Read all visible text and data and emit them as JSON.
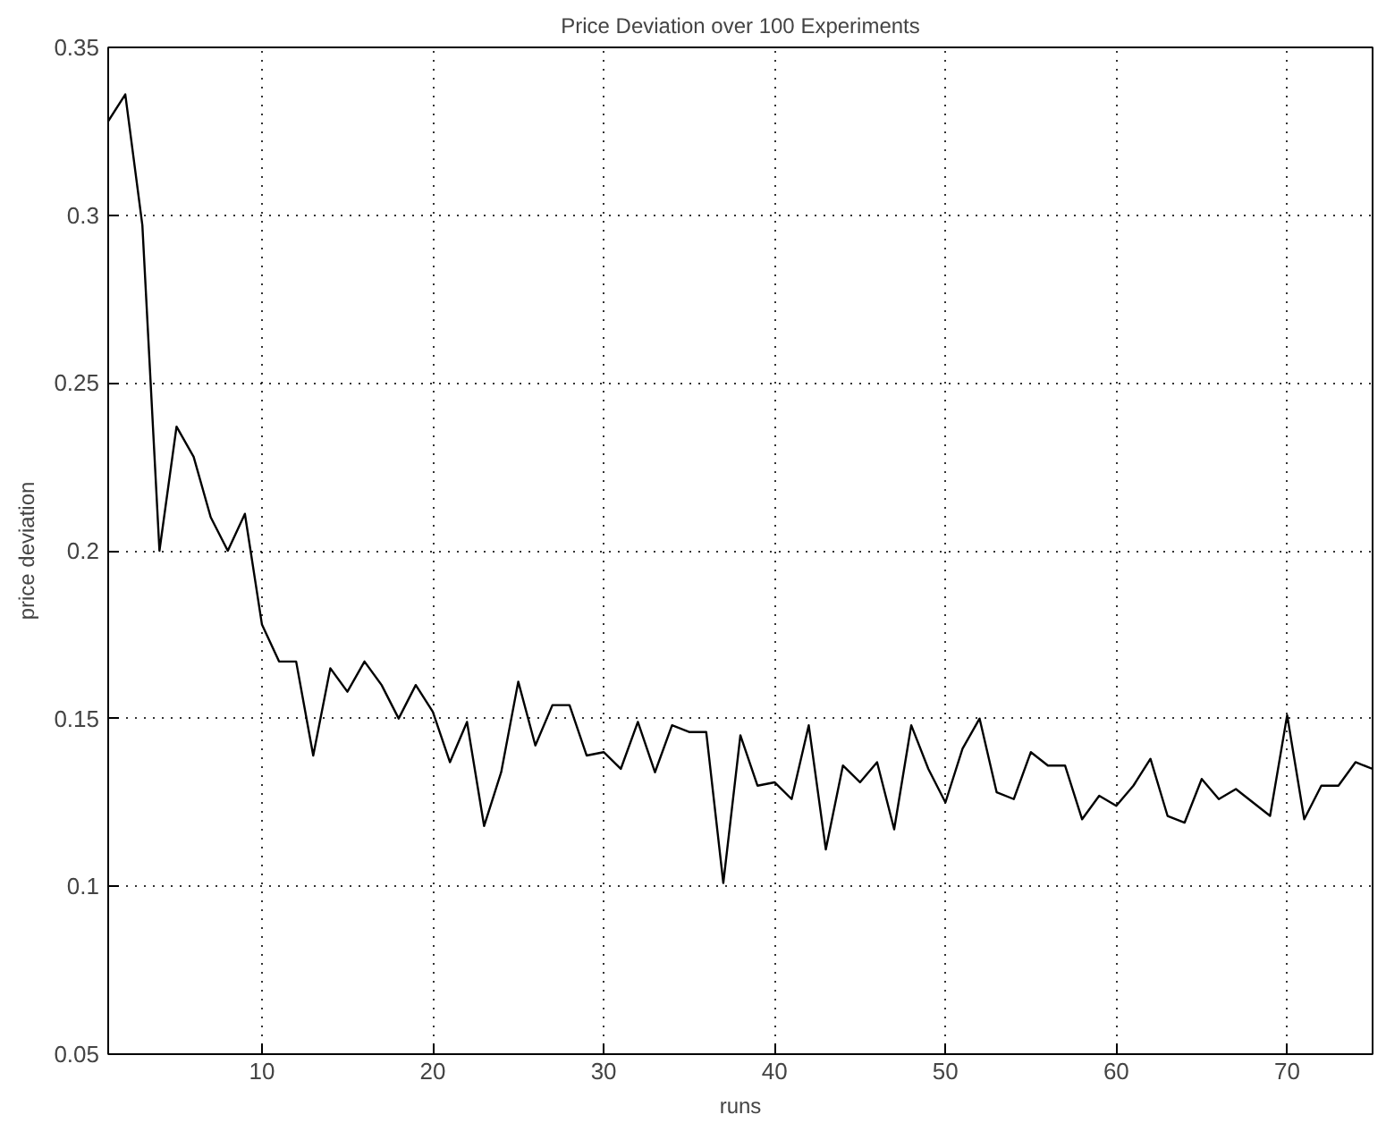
{
  "chart_data": {
    "type": "line",
    "title": "Price Deviation over 100 Experiments",
    "xlabel": "runs",
    "ylabel": "price deviation",
    "x": [
      1,
      2,
      3,
      4,
      5,
      6,
      7,
      8,
      9,
      10,
      11,
      12,
      13,
      14,
      15,
      16,
      17,
      18,
      19,
      20,
      21,
      22,
      23,
      24,
      25,
      26,
      27,
      28,
      29,
      30,
      31,
      32,
      33,
      34,
      35,
      36,
      37,
      38,
      39,
      40,
      41,
      42,
      43,
      44,
      45,
      46,
      47,
      48,
      49,
      50,
      51,
      52,
      53,
      54,
      55,
      56,
      57,
      58,
      59,
      60,
      61,
      62,
      63,
      64,
      65,
      66,
      67,
      68,
      69,
      70,
      71,
      72,
      73,
      74,
      75
    ],
    "series": [
      {
        "color": "#000000",
        "values": [
          0.328,
          0.336,
          0.297,
          0.2,
          0.237,
          0.228,
          0.21,
          0.2,
          0.211,
          0.178,
          0.167,
          0.167,
          0.139,
          0.165,
          0.158,
          0.167,
          0.16,
          0.15,
          0.16,
          0.152,
          0.137,
          0.149,
          0.118,
          0.134,
          0.161,
          0.142,
          0.154,
          0.154,
          0.139,
          0.14,
          0.135,
          0.149,
          0.134,
          0.148,
          0.146,
          0.146,
          0.101,
          0.145,
          0.13,
          0.131,
          0.126,
          0.148,
          0.111,
          0.136,
          0.131,
          0.137,
          0.117,
          0.148,
          0.135,
          0.125,
          0.141,
          0.15,
          0.128,
          0.126,
          0.14,
          0.136,
          0.136,
          0.12,
          0.127,
          0.124,
          0.13,
          0.138,
          0.121,
          0.119,
          0.132,
          0.126,
          0.129,
          0.125,
          0.121,
          0.151,
          0.12,
          0.13,
          0.13,
          0.137,
          0.135
        ]
      }
    ],
    "xlim": [
      1,
      75
    ],
    "ylim": [
      0.05,
      0.35
    ],
    "xticks": [
      10,
      20,
      30,
      40,
      50,
      60,
      70
    ],
    "yticks": [
      0.05,
      0.1,
      0.15,
      0.2,
      0.25,
      0.3,
      0.35
    ],
    "grid": true,
    "marker": "none",
    "line_style": "solid"
  }
}
